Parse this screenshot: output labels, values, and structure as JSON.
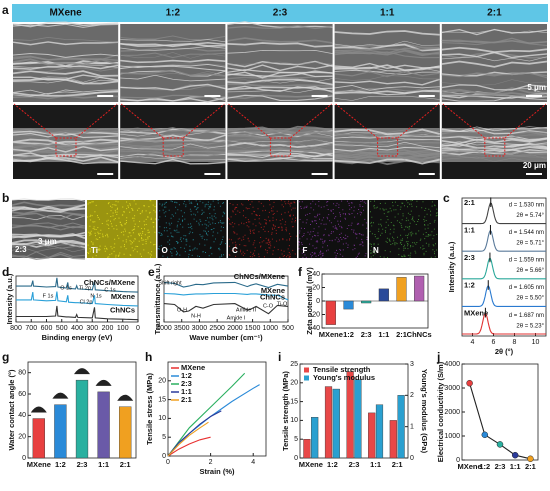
{
  "figure": {
    "panel_labels": [
      "a",
      "b",
      "c",
      "d",
      "e",
      "f",
      "g",
      "h",
      "i",
      "j"
    ],
    "a": {
      "headers": [
        "MXene",
        "1:2",
        "2:3",
        "1:1",
        "2:1"
      ],
      "scale_top": "5 μm",
      "scale_bottom": "20 μm"
    },
    "b": {
      "sample": "2:3",
      "scale": "3 μm",
      "elements": [
        "Ti",
        "O",
        "C",
        "F",
        "N"
      ],
      "element_colors": [
        "#e6e020",
        "#2aa8b8",
        "#e02828",
        "#a040c0",
        "#50b040"
      ]
    }
  },
  "chart_data": [
    {
      "type": "ridgeline",
      "xlabel": "2θ (°)",
      "ylabel": "Intensity (a.u.)",
      "categories": [
        "2:1",
        "1:1",
        "2:3",
        "1:2",
        "MXene"
      ],
      "values": [
        5.74,
        5.71,
        5.66,
        5.5,
        5.23
      ],
      "value_labels": [
        "2θ = 5.74°",
        "2θ = 5.71°",
        "2θ = 5.66°",
        "2θ = 5.50°",
        "2θ = 5.23°"
      ],
      "d_labels": [
        "d = 1.530 nm",
        "d = 1.544 nm",
        "d = 1.559 nm",
        "d = 1.605 nm",
        "d = 1.687 nm"
      ],
      "colors": [
        "#444444",
        "#5a7a9a",
        "#2aa89a",
        "#2a7ad0",
        "#e03030"
      ],
      "xlim": [
        3,
        11
      ],
      "xticks": [
        4,
        6,
        8,
        10
      ]
    },
    {
      "type": "line",
      "xlabel": "Binding energy (eV)",
      "ylabel": "Intensity (a.u.)",
      "x": [
        800,
        700,
        690,
        685,
        600,
        540,
        532,
        525,
        470,
        460,
        455,
        410,
        402,
        395,
        300,
        285,
        280,
        200,
        100,
        0
      ],
      "series": [
        {
          "name": "ChNCs/MXene",
          "color": "#2a6a8a",
          "values": [
            7.8,
            7.8,
            9.0,
            7.8,
            7.6,
            7.7,
            9.6,
            7.6,
            7.4,
            8.6,
            7.3,
            7.2,
            7.9,
            7.2,
            7.0,
            8.8,
            7.0,
            6.8,
            6.6,
            6.5
          ]
        },
        {
          "name": "MXene",
          "color": "#2aa0d8",
          "values": [
            4.8,
            4.8,
            6.5,
            4.8,
            4.6,
            4.7,
            6.6,
            4.6,
            4.4,
            5.8,
            4.3,
            4.2,
            4.2,
            4.2,
            4.0,
            5.8,
            4.0,
            3.8,
            3.6,
            3.5
          ]
        },
        {
          "name": "ChNCs",
          "color": "#333333",
          "values": [
            1.2,
            1.2,
            1.2,
            1.2,
            1.2,
            1.3,
            3.5,
            1.3,
            1.1,
            1.1,
            1.1,
            1.0,
            1.6,
            1.0,
            0.9,
            3.2,
            0.9,
            0.7,
            0.6,
            0.5
          ]
        }
      ],
      "annotations": [
        "F 1s",
        "O 1s",
        "Ti 2p",
        "N 1s",
        "C 1s",
        "Cl 2p"
      ],
      "xlim": [
        800,
        0
      ],
      "xticks": [
        800,
        700,
        600,
        500,
        400,
        300,
        200,
        100,
        0
      ],
      "ylim": [
        0,
        10
      ]
    },
    {
      "type": "line",
      "xlabel": "Wave number (cm⁻¹)",
      "ylabel": "Transmittance (a.u.)",
      "x": [
        4000,
        3700,
        3450,
        3300,
        3100,
        2900,
        2600,
        2000,
        1650,
        1550,
        1400,
        1050,
        800,
        500
      ],
      "series": [
        {
          "name": "ChNCs/MXene",
          "color": "#2a6a8a",
          "values": [
            8.6,
            8.4,
            7.6,
            7.8,
            8.2,
            8.1,
            8.5,
            8.6,
            7.7,
            8.0,
            8.3,
            7.5,
            8.2,
            7.8
          ]
        },
        {
          "name": "MXene",
          "color": "#2aa0d8",
          "values": [
            6.2,
            6.1,
            5.9,
            6.0,
            6.1,
            6.1,
            6.2,
            6.2,
            6.0,
            6.1,
            6.1,
            5.9,
            5.8,
            4.8
          ]
        },
        {
          "name": "ChNCs",
          "color": "#333333",
          "values": [
            4.0,
            3.8,
            2.2,
            2.4,
            3.4,
            3.0,
            3.8,
            4.0,
            2.6,
            2.8,
            3.4,
            1.8,
            3.6,
            3.4
          ]
        }
      ],
      "annotations": [
        "Shift right",
        "O-H",
        "N-H",
        "Amide I",
        "Amide II",
        "C-O",
        "Ti-O"
      ],
      "xlim": [
        4000,
        500
      ],
      "xticks": [
        4000,
        3500,
        3000,
        2500,
        2000,
        1500,
        1000,
        500
      ],
      "ylim": [
        0,
        10
      ]
    },
    {
      "type": "bar",
      "ylabel": "Zeta potential (mV)",
      "categories": [
        "MXene",
        "1:2",
        "2:3",
        "1:1",
        "2:1",
        "ChNCs"
      ],
      "values": [
        -35,
        -12,
        -3,
        18,
        35,
        37
      ],
      "colors": [
        "#e84040",
        "#2a8ad8",
        "#2ab0a0",
        "#2a4a9a",
        "#f0a020",
        "#b060b0"
      ],
      "ylim": [
        -40,
        40
      ],
      "yticks": [
        -40,
        -20,
        0,
        20,
        40
      ]
    },
    {
      "type": "bar",
      "ylabel": "Water contact angle (°)",
      "categories": [
        "MXene",
        "1:2",
        "2:3",
        "1:1",
        "2:1"
      ],
      "values": [
        37,
        50,
        73,
        62,
        48
      ],
      "colors": [
        "#e84040",
        "#2a8ad8",
        "#2ab0a0",
        "#6a5aa8",
        "#f0a020"
      ],
      "ylim": [
        0,
        90
      ],
      "yticks": [
        0,
        20,
        40,
        60,
        80
      ]
    },
    {
      "type": "line",
      "xlabel": "Strain (%)",
      "ylabel": "Tensile stress (MPa)",
      "legend": "top-left",
      "series": [
        {
          "name": "MXene",
          "color": "#e83030",
          "x": [
            0,
            0.5,
            1,
            1.5,
            2.0
          ],
          "values": [
            0,
            1.8,
            3.2,
            4.3,
            5.0
          ]
        },
        {
          "name": "1:2",
          "color": "#2a8ad8",
          "x": [
            0,
            1,
            2,
            3,
            4,
            4.3
          ],
          "values": [
            0,
            6,
            10.5,
            14.5,
            18,
            19
          ]
        },
        {
          "name": "2:3",
          "color": "#2ab060",
          "x": [
            0,
            1,
            2,
            3,
            3.6
          ],
          "values": [
            0,
            7.5,
            13,
            18.5,
            22
          ]
        },
        {
          "name": "1:1",
          "color": "#2a3a9a",
          "x": [
            0,
            0.5,
            1,
            1.5,
            2,
            2.5
          ],
          "values": [
            0,
            3.5,
            6,
            8.5,
            10.5,
            12
          ]
        },
        {
          "name": "2:1",
          "color": "#f0a020",
          "x": [
            0,
            0.5,
            1,
            1.5,
            1.9
          ],
          "values": [
            0,
            3,
            5.5,
            7.5,
            9
          ]
        }
      ],
      "xlim": [
        0,
        4.6
      ],
      "xticks": [
        0,
        2,
        4
      ],
      "ylim": [
        0,
        25
      ],
      "yticks": [
        0,
        5,
        10,
        15,
        20
      ]
    },
    {
      "type": "bar",
      "ylabel": "Tensile strength (MPa)",
      "y2label": "Young's modulus (GPa)",
      "legend": "top-left",
      "categories": [
        "MXene",
        "1:2",
        "2:3",
        "1:1",
        "2:1"
      ],
      "series": [
        {
          "name": "Tensile strength",
          "color": "#e84848",
          "values": [
            5,
            19,
            23,
            12,
            10
          ]
        },
        {
          "name": "Young's modulus",
          "color": "#2aa0d0",
          "axis": "y2",
          "values": [
            1.3,
            2.2,
            2.5,
            1.7,
            2.0
          ]
        }
      ],
      "ylim": [
        0,
        25
      ],
      "yticks": [
        0,
        5,
        10,
        15,
        20,
        25
      ],
      "y2lim": [
        0,
        3
      ],
      "y2ticks": [
        0,
        1,
        2,
        3
      ]
    },
    {
      "type": "line",
      "ylabel": "Electrical conductivity (S/m)",
      "categories": [
        "MXene",
        "1:2",
        "2:3",
        "1:1",
        "2:1"
      ],
      "series": [
        {
          "color": "#222222",
          "values": [
            3200,
            1050,
            650,
            200,
            50
          ]
        }
      ],
      "colors": [
        "#e84040",
        "#2a8ad8",
        "#2ab0a0",
        "#2a3a9a",
        "#f0a020"
      ],
      "ylim": [
        0,
        4000
      ],
      "yticks": [
        0,
        1000,
        2000,
        3000,
        4000
      ]
    }
  ]
}
